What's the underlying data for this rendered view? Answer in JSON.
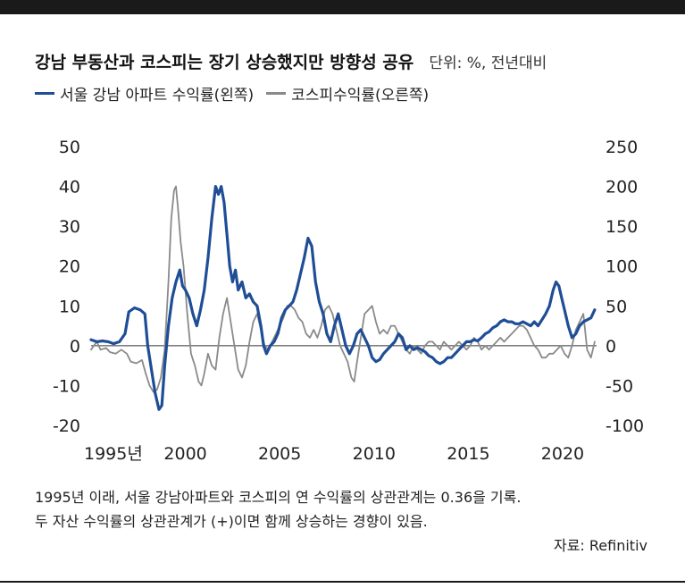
{
  "header": {
    "title": "강남 부동산과 코스피는 장기 상승했지만 방향성 공유",
    "unit": "단위: %, 전년대비"
  },
  "legend": [
    {
      "label": "서울 강남 아파트 수익률(왼쪽)",
      "color": "#1f4e96"
    },
    {
      "label": "코스피수익률(오른쪽)",
      "color": "#8a8a8a"
    }
  ],
  "caption": {
    "line1": "1995년 이래, 서울 강남아파트와 코스피의 연 수익률의 상관관계는 0.36을 기록.",
    "line2": "두 자산 수익률의 상관관계가 (+)이면 함께 상승하는 경향이 있음."
  },
  "source": "자료: Refinitiv",
  "chart_data": {
    "type": "line",
    "title": "강남 부동산과 코스피는 장기 상승했지만 방향성 공유",
    "x_tick_labels": [
      "1995년",
      "2000",
      "2005",
      "2010",
      "2015",
      "2020"
    ],
    "x_ticks": [
      1995,
      2000,
      2005,
      2010,
      2015,
      2020
    ],
    "xlim": [
      1995,
      2021.8
    ],
    "y_left": {
      "ticks": [
        50,
        40,
        30,
        20,
        10,
        0,
        -10,
        -20
      ],
      "ylim": [
        -20,
        50
      ]
    },
    "y_right": {
      "ticks": [
        250,
        200,
        150,
        100,
        50,
        0,
        -50,
        -100
      ],
      "ylim": [
        -100,
        250
      ]
    },
    "series": [
      {
        "name": "서울 강남 아파트 수익률(왼쪽)",
        "axis": "left",
        "color": "#1f4e96",
        "points": [
          [
            1995.0,
            1.5
          ],
          [
            1995.3,
            1
          ],
          [
            1995.6,
            1.2
          ],
          [
            1995.9,
            1
          ],
          [
            1996.2,
            0.5
          ],
          [
            1996.5,
            1
          ],
          [
            1996.8,
            3
          ],
          [
            1997.0,
            8.5
          ],
          [
            1997.3,
            9.5
          ],
          [
            1997.6,
            9
          ],
          [
            1997.85,
            8
          ],
          [
            1998.0,
            0
          ],
          [
            1998.2,
            -6
          ],
          [
            1998.4,
            -12
          ],
          [
            1998.6,
            -16
          ],
          [
            1998.75,
            -15
          ],
          [
            1998.9,
            -5
          ],
          [
            1999.1,
            5
          ],
          [
            1999.3,
            12
          ],
          [
            1999.5,
            16
          ],
          [
            1999.7,
            19
          ],
          [
            1999.85,
            15
          ],
          [
            2000.0,
            14
          ],
          [
            2000.2,
            12
          ],
          [
            2000.4,
            8
          ],
          [
            2000.6,
            5
          ],
          [
            2000.8,
            9
          ],
          [
            2001.0,
            14
          ],
          [
            2001.2,
            22
          ],
          [
            2001.4,
            32
          ],
          [
            2001.6,
            40
          ],
          [
            2001.75,
            38
          ],
          [
            2001.9,
            40
          ],
          [
            2002.05,
            36
          ],
          [
            2002.2,
            28
          ],
          [
            2002.35,
            20
          ],
          [
            2002.5,
            16
          ],
          [
            2002.65,
            19
          ],
          [
            2002.8,
            14
          ],
          [
            2003.0,
            16
          ],
          [
            2003.2,
            12
          ],
          [
            2003.4,
            13
          ],
          [
            2003.6,
            11
          ],
          [
            2003.8,
            10
          ],
          [
            2004.0,
            5
          ],
          [
            2004.15,
            0
          ],
          [
            2004.3,
            -2
          ],
          [
            2004.5,
            0
          ],
          [
            2004.7,
            1
          ],
          [
            2004.9,
            3
          ],
          [
            2005.1,
            7
          ],
          [
            2005.3,
            9
          ],
          [
            2005.5,
            10
          ],
          [
            2005.7,
            11
          ],
          [
            2005.9,
            14
          ],
          [
            2006.1,
            18
          ],
          [
            2006.3,
            22
          ],
          [
            2006.5,
            27
          ],
          [
            2006.7,
            25
          ],
          [
            2006.9,
            16
          ],
          [
            2007.1,
            11
          ],
          [
            2007.3,
            8
          ],
          [
            2007.5,
            3
          ],
          [
            2007.7,
            1
          ],
          [
            2007.9,
            5
          ],
          [
            2008.1,
            8
          ],
          [
            2008.3,
            4
          ],
          [
            2008.5,
            0
          ],
          [
            2008.7,
            -2
          ],
          [
            2008.9,
            0
          ],
          [
            2009.1,
            3
          ],
          [
            2009.3,
            4
          ],
          [
            2009.5,
            2
          ],
          [
            2009.7,
            0
          ],
          [
            2009.9,
            -3
          ],
          [
            2010.1,
            -4
          ],
          [
            2010.3,
            -3.5
          ],
          [
            2010.5,
            -2
          ],
          [
            2010.7,
            -1
          ],
          [
            2010.9,
            0
          ],
          [
            2011.1,
            1
          ],
          [
            2011.3,
            3
          ],
          [
            2011.5,
            2
          ],
          [
            2011.7,
            -1
          ],
          [
            2011.9,
            0
          ],
          [
            2012.1,
            -1
          ],
          [
            2012.3,
            -0.5
          ],
          [
            2012.5,
            -1
          ],
          [
            2012.7,
            -1.5
          ],
          [
            2012.9,
            -2.5
          ],
          [
            2013.1,
            -3
          ],
          [
            2013.3,
            -4
          ],
          [
            2013.5,
            -4.5
          ],
          [
            2013.7,
            -4
          ],
          [
            2013.9,
            -3
          ],
          [
            2014.1,
            -3
          ],
          [
            2014.3,
            -2
          ],
          [
            2014.5,
            -1
          ],
          [
            2014.7,
            0
          ],
          [
            2014.9,
            1
          ],
          [
            2015.1,
            1
          ],
          [
            2015.3,
            1.5
          ],
          [
            2015.5,
            1.2
          ],
          [
            2015.7,
            2
          ],
          [
            2015.9,
            3
          ],
          [
            2016.1,
            3.5
          ],
          [
            2016.3,
            4.5
          ],
          [
            2016.5,
            5
          ],
          [
            2016.7,
            6
          ],
          [
            2016.9,
            6.5
          ],
          [
            2017.1,
            6
          ],
          [
            2017.3,
            6
          ],
          [
            2017.5,
            5.5
          ],
          [
            2017.7,
            5.5
          ],
          [
            2017.9,
            6
          ],
          [
            2018.1,
            5.5
          ],
          [
            2018.3,
            5
          ],
          [
            2018.5,
            6
          ],
          [
            2018.7,
            5
          ],
          [
            2018.9,
            6.5
          ],
          [
            2019.1,
            8
          ],
          [
            2019.3,
            10
          ],
          [
            2019.5,
            14
          ],
          [
            2019.65,
            16
          ],
          [
            2019.8,
            15
          ],
          [
            2019.95,
            12
          ],
          [
            2020.1,
            9
          ],
          [
            2020.3,
            5
          ],
          [
            2020.5,
            2
          ],
          [
            2020.7,
            3
          ],
          [
            2020.9,
            5
          ],
          [
            2021.1,
            6
          ],
          [
            2021.3,
            6.5
          ],
          [
            2021.5,
            7
          ],
          [
            2021.7,
            9
          ]
        ]
      },
      {
        "name": "코스피수익률(오른쪽)",
        "axis": "right",
        "color": "#8a8a8a",
        "points": [
          [
            1995.0,
            -5
          ],
          [
            1995.3,
            5
          ],
          [
            1995.5,
            -5
          ],
          [
            1995.8,
            -3
          ],
          [
            1996.0,
            -8
          ],
          [
            1996.3,
            -10
          ],
          [
            1996.6,
            -5
          ],
          [
            1996.9,
            -10
          ],
          [
            1997.1,
            -20
          ],
          [
            1997.4,
            -22
          ],
          [
            1997.7,
            -18
          ],
          [
            1997.9,
            -35
          ],
          [
            1998.1,
            -50
          ],
          [
            1998.3,
            -58
          ],
          [
            1998.5,
            -55
          ],
          [
            1998.7,
            -40
          ],
          [
            1998.9,
            -5
          ],
          [
            1999.1,
            80
          ],
          [
            1999.25,
            160
          ],
          [
            1999.4,
            195
          ],
          [
            1999.5,
            200
          ],
          [
            1999.6,
            175
          ],
          [
            1999.75,
            130
          ],
          [
            1999.9,
            100
          ],
          [
            2000.1,
            40
          ],
          [
            2000.3,
            -10
          ],
          [
            2000.5,
            -25
          ],
          [
            2000.7,
            -45
          ],
          [
            2000.85,
            -50
          ],
          [
            2001.0,
            -35
          ],
          [
            2001.2,
            -10
          ],
          [
            2001.4,
            -25
          ],
          [
            2001.6,
            -30
          ],
          [
            2001.8,
            10
          ],
          [
            2002.0,
            40
          ],
          [
            2002.2,
            60
          ],
          [
            2002.4,
            30
          ],
          [
            2002.6,
            0
          ],
          [
            2002.8,
            -30
          ],
          [
            2003.0,
            -40
          ],
          [
            2003.2,
            -25
          ],
          [
            2003.4,
            5
          ],
          [
            2003.6,
            30
          ],
          [
            2003.8,
            40
          ],
          [
            2004.0,
            20
          ],
          [
            2004.2,
            0
          ],
          [
            2004.4,
            -5
          ],
          [
            2004.6,
            5
          ],
          [
            2004.8,
            15
          ],
          [
            2005.0,
            25
          ],
          [
            2005.2,
            35
          ],
          [
            2005.4,
            50
          ],
          [
            2005.6,
            50
          ],
          [
            2005.8,
            45
          ],
          [
            2006.0,
            35
          ],
          [
            2006.2,
            30
          ],
          [
            2006.4,
            15
          ],
          [
            2006.6,
            10
          ],
          [
            2006.8,
            20
          ],
          [
            2007.0,
            10
          ],
          [
            2007.2,
            25
          ],
          [
            2007.4,
            45
          ],
          [
            2007.6,
            50
          ],
          [
            2007.8,
            40
          ],
          [
            2008.0,
            20
          ],
          [
            2008.2,
            0
          ],
          [
            2008.4,
            -10
          ],
          [
            2008.6,
            -20
          ],
          [
            2008.8,
            -40
          ],
          [
            2008.95,
            -45
          ],
          [
            2009.1,
            -20
          ],
          [
            2009.3,
            10
          ],
          [
            2009.5,
            40
          ],
          [
            2009.7,
            45
          ],
          [
            2009.9,
            50
          ],
          [
            2010.1,
            30
          ],
          [
            2010.3,
            15
          ],
          [
            2010.5,
            20
          ],
          [
            2010.7,
            15
          ],
          [
            2010.9,
            25
          ],
          [
            2011.1,
            25
          ],
          [
            2011.3,
            15
          ],
          [
            2011.5,
            5
          ],
          [
            2011.7,
            -5
          ],
          [
            2011.9,
            -10
          ],
          [
            2012.1,
            0
          ],
          [
            2012.3,
            -5
          ],
          [
            2012.5,
            -10
          ],
          [
            2012.7,
            0
          ],
          [
            2012.9,
            5
          ],
          [
            2013.1,
            5
          ],
          [
            2013.3,
            0
          ],
          [
            2013.5,
            -5
          ],
          [
            2013.7,
            5
          ],
          [
            2013.9,
            0
          ],
          [
            2014.1,
            -5
          ],
          [
            2014.3,
            0
          ],
          [
            2014.5,
            5
          ],
          [
            2014.7,
            0
          ],
          [
            2014.9,
            -5
          ],
          [
            2015.1,
            0
          ],
          [
            2015.3,
            10
          ],
          [
            2015.5,
            5
          ],
          [
            2015.7,
            -5
          ],
          [
            2015.9,
            0
          ],
          [
            2016.1,
            -5
          ],
          [
            2016.3,
            0
          ],
          [
            2016.5,
            5
          ],
          [
            2016.7,
            10
          ],
          [
            2016.9,
            5
          ],
          [
            2017.1,
            10
          ],
          [
            2017.3,
            15
          ],
          [
            2017.5,
            20
          ],
          [
            2017.7,
            25
          ],
          [
            2017.9,
            25
          ],
          [
            2018.1,
            20
          ],
          [
            2018.3,
            10
          ],
          [
            2018.5,
            0
          ],
          [
            2018.7,
            -5
          ],
          [
            2018.9,
            -15
          ],
          [
            2019.1,
            -15
          ],
          [
            2019.3,
            -10
          ],
          [
            2019.5,
            -10
          ],
          [
            2019.7,
            -5
          ],
          [
            2019.9,
            0
          ],
          [
            2020.1,
            -10
          ],
          [
            2020.3,
            -15
          ],
          [
            2020.5,
            0
          ],
          [
            2020.7,
            20
          ],
          [
            2020.9,
            30
          ],
          [
            2021.1,
            40
          ],
          [
            2021.3,
            -5
          ],
          [
            2021.5,
            -15
          ],
          [
            2021.7,
            5
          ]
        ]
      }
    ]
  }
}
